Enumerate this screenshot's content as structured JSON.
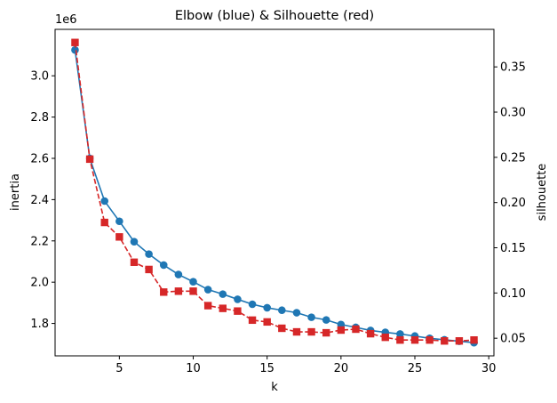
{
  "chart_data": {
    "type": "line",
    "title": "Elbow (blue) & Silhouette (red)",
    "xlabel": "k",
    "ylabel_left": "inertia",
    "ylabel_right": "silhouette",
    "left_axis_offset_label": "1e6",
    "xlim": [
      0.65,
      30.35
    ],
    "ylim_left": [
      1.643,
      3.225
    ],
    "ylim_right": [
      0.0305,
      0.3915
    ],
    "xticks": [
      5,
      10,
      15,
      20,
      25,
      30
    ],
    "yticks_left": [
      1.8,
      2.0,
      2.2,
      2.4,
      2.6,
      2.8,
      3.0
    ],
    "yticks_right": [
      0.05,
      0.1,
      0.15,
      0.2,
      0.25,
      0.3,
      0.35
    ],
    "x": [
      2,
      3,
      4,
      5,
      6,
      7,
      8,
      9,
      10,
      11,
      12,
      13,
      14,
      15,
      16,
      17,
      18,
      19,
      20,
      21,
      22,
      23,
      24,
      25,
      26,
      27,
      28,
      29
    ],
    "series": [
      {
        "axis": "left",
        "color": "#1f77b4",
        "marker": "circle",
        "linestyle": "solid",
        "values": [
          3.125,
          2.6,
          2.393,
          2.295,
          2.196,
          2.136,
          2.083,
          2.037,
          2.002,
          1.964,
          1.942,
          1.917,
          1.893,
          1.876,
          1.864,
          1.852,
          1.83,
          1.817,
          1.795,
          1.781,
          1.766,
          1.757,
          1.749,
          1.739,
          1.728,
          1.721,
          1.714,
          1.707
        ]
      },
      {
        "axis": "right",
        "color": "#d62728",
        "marker": "square",
        "linestyle": "dashed",
        "values": [
          0.377,
          0.248,
          0.178,
          0.162,
          0.134,
          0.126,
          0.101,
          0.102,
          0.102,
          0.086,
          0.083,
          0.08,
          0.07,
          0.068,
          0.061,
          0.057,
          0.057,
          0.056,
          0.059,
          0.06,
          0.055,
          0.051,
          0.048,
          0.048,
          0.048,
          0.047,
          0.047,
          0.048
        ]
      }
    ]
  }
}
